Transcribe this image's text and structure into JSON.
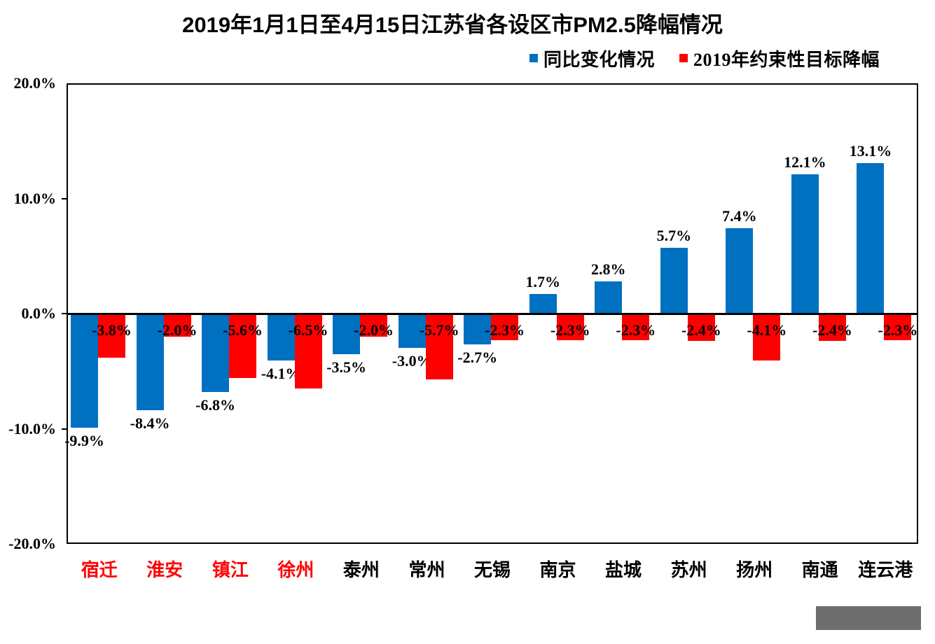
{
  "title": "2019年1月1日至4月15日江苏省各设区市PM2.5降幅情况",
  "legend": {
    "items": [
      {
        "label": "同比变化情况",
        "color": "#0070C0"
      },
      {
        "label": "2019年约束性目标降幅",
        "color": "#FF0000"
      }
    ]
  },
  "colors": {
    "series_yoy": "#0070C0",
    "series_target": "#FF0000",
    "axis": "#000000",
    "highlight_city_label": "#FF0000",
    "normal_city_label": "#000000",
    "footer_block": "#6E6E6E"
  },
  "y_axis": {
    "tick_labels": [
      "20.0%",
      "10.0%",
      "0.0%",
      "-10.0%",
      "-20.0%"
    ],
    "tick_values": [
      20,
      10,
      0,
      -10,
      -20
    ],
    "min": -20,
    "max": 20
  },
  "chart_data": {
    "type": "bar",
    "title": "2019年1月1日至4月15日江苏省各设区市PM2.5降幅情况",
    "categories": [
      "宿迁",
      "淮安",
      "镇江",
      "徐州",
      "泰州",
      "常州",
      "无锡",
      "南京",
      "盐城",
      "苏州",
      "扬州",
      "南通",
      "连云港"
    ],
    "highlighted_categories": [
      "宿迁",
      "淮安",
      "镇江",
      "徐州"
    ],
    "series": [
      {
        "name": "同比变化情况",
        "color": "#0070C0",
        "values": [
          -9.9,
          -8.4,
          -6.8,
          -4.1,
          -3.5,
          -3.0,
          -2.7,
          1.7,
          2.8,
          5.7,
          7.4,
          12.1,
          13.1
        ],
        "labels": [
          "-9.9%",
          "-8.4%",
          "-6.8%",
          "-4.1%",
          "-3.5%",
          "-3.0%",
          "-2.7%",
          "1.7%",
          "2.8%",
          "5.7%",
          "7.4%",
          "12.1%",
          "13.1%"
        ]
      },
      {
        "name": "2019年约束性目标降幅",
        "color": "#FF0000",
        "values": [
          -3.8,
          -2.0,
          -5.6,
          -6.5,
          -2.0,
          -5.7,
          -2.3,
          -2.3,
          -2.3,
          -2.4,
          -4.1,
          -2.4,
          -2.3
        ],
        "labels": [
          "-3.8%",
          "-2.0%",
          "-5.6%",
          "-6.5%",
          "-2.0%",
          "-5.7%",
          "-2.3%",
          "-2.3%",
          "-2.3%",
          "-2.4%",
          "-4.1%",
          "-2.4%",
          "-2.3%"
        ]
      }
    ],
    "xlabel": "",
    "ylabel": "",
    "ylim": [
      -20,
      20
    ],
    "grid": false,
    "legend_position": "top-right"
  }
}
